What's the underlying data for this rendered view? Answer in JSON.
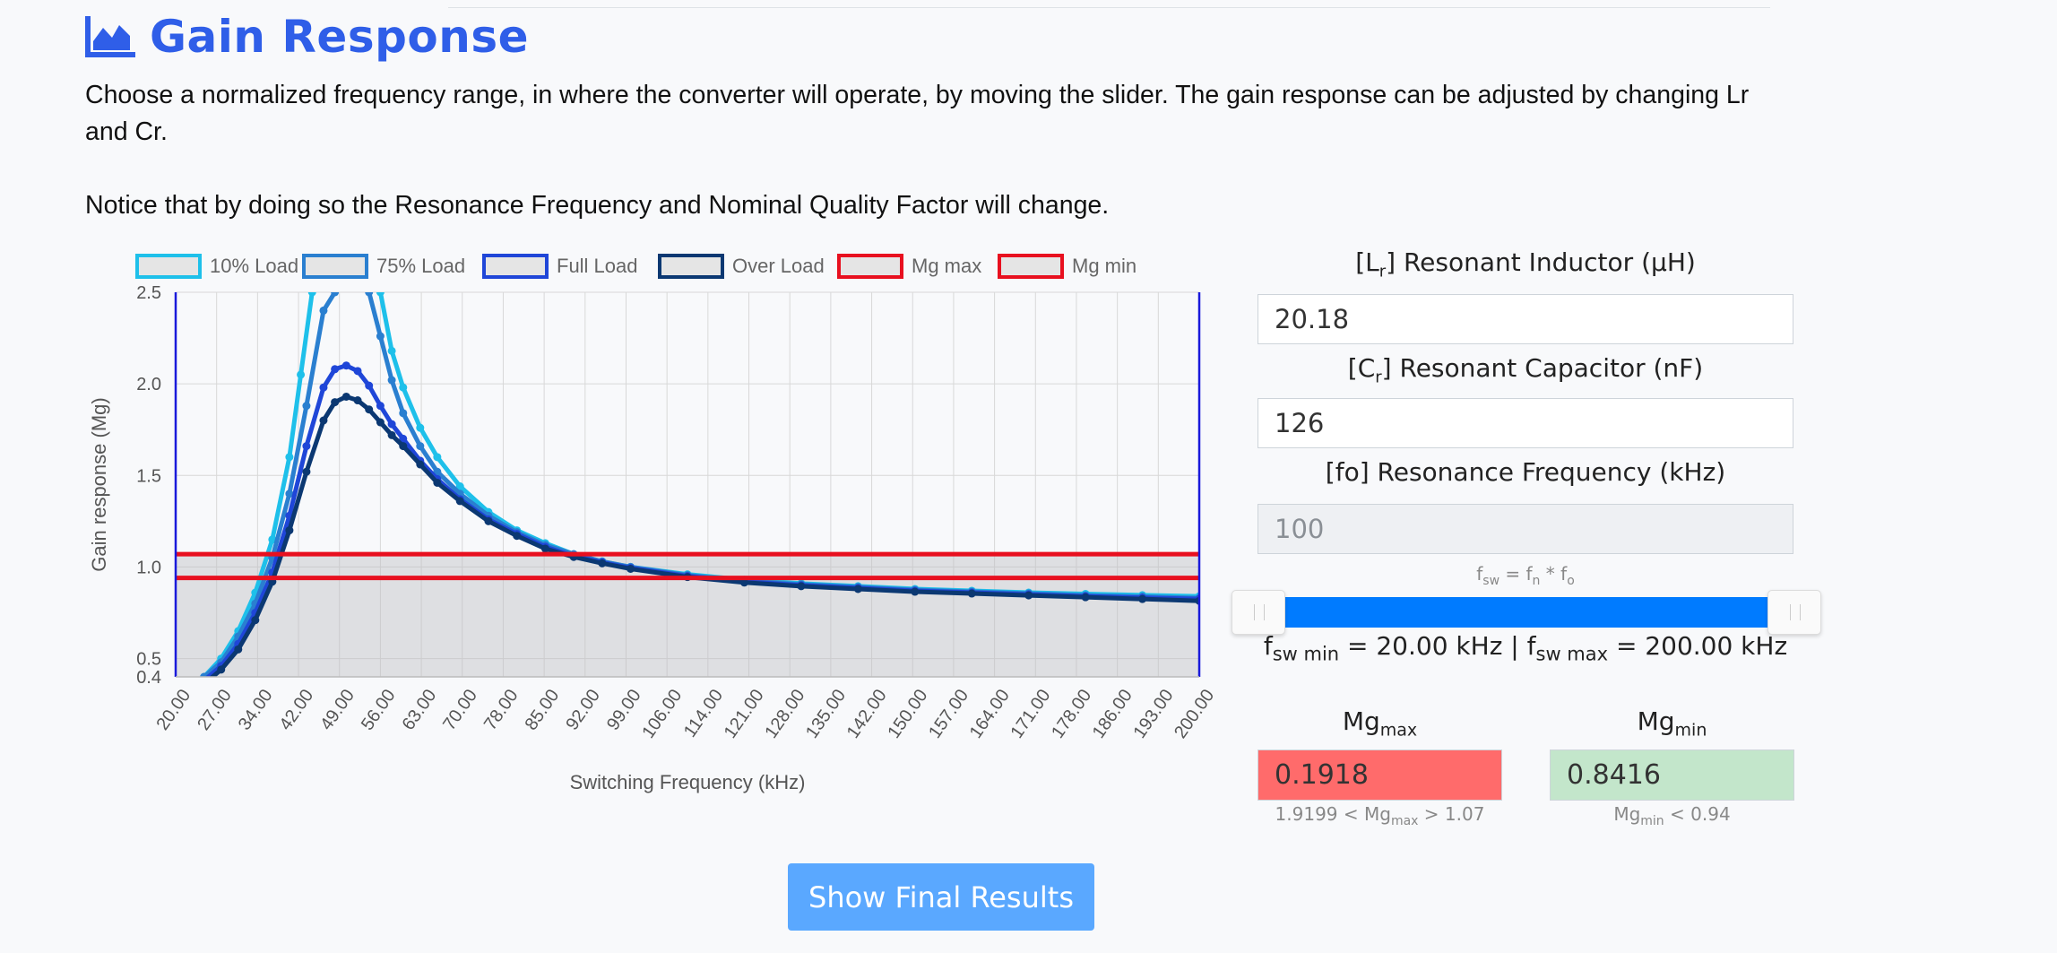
{
  "header": {
    "title": "Gain Response",
    "icon": "area-chart-icon"
  },
  "description": {
    "line1": "Choose a normalized frequency range, in where the converter will operate, by moving the slider. The gain response can be adjusted by changing Lr and Cr.",
    "line2": "Notice that by doing so the Resonance Frequency and Nominal Quality Factor will change."
  },
  "chart_data": {
    "type": "line",
    "xlabel": "Switching Frequency (kHz)",
    "ylabel": "Gain response (Mg)",
    "ylim": [
      0.4,
      2.5
    ],
    "yticks": [
      "0.4",
      "0.5",
      "1.0",
      "1.5",
      "2.0",
      "2.5"
    ],
    "x_ticks": [
      "20.00",
      "27.00",
      "34.00",
      "42.00",
      "49.00",
      "56.00",
      "63.00",
      "70.00",
      "78.00",
      "85.00",
      "92.00",
      "99.00",
      "106.00",
      "114.00",
      "121.00",
      "128.00",
      "135.00",
      "142.00",
      "150.00",
      "157.00",
      "164.00",
      "171.00",
      "178.00",
      "186.00",
      "193.00",
      "200.00"
    ],
    "grid": true,
    "legend_position": "top",
    "series": [
      {
        "name": "10% Load",
        "color": "#1ec0ea",
        "x": [
          25,
          28,
          31,
          34,
          37,
          40,
          42,
          44,
          46,
          48,
          50,
          52,
          54,
          56,
          58,
          60,
          63,
          66,
          70,
          75,
          80,
          85,
          90,
          95,
          100,
          110,
          120,
          130,
          140,
          150,
          160,
          170,
          180,
          190,
          200
        ],
        "y": [
          0.4,
          0.5,
          0.65,
          0.86,
          1.15,
          1.6,
          2.05,
          2.5,
          null,
          null,
          null,
          null,
          null,
          2.5,
          2.18,
          1.98,
          1.76,
          1.6,
          1.44,
          1.3,
          1.2,
          1.13,
          1.07,
          1.03,
          1.0,
          0.96,
          0.93,
          0.91,
          0.895,
          0.88,
          0.87,
          0.86,
          0.853,
          0.846,
          0.84
        ]
      },
      {
        "name": "75% Load",
        "color": "#2a7fd0",
        "x": [
          25,
          28,
          31,
          34,
          37,
          40,
          43,
          46,
          48,
          50,
          52,
          54,
          56,
          58,
          60,
          63,
          66,
          70,
          75,
          80,
          85,
          90,
          95,
          100,
          110,
          120,
          130,
          140,
          150,
          160,
          170,
          180,
          190,
          200
        ],
        "y": [
          0.4,
          0.48,
          0.62,
          0.8,
          1.05,
          1.4,
          1.88,
          2.4,
          2.5,
          null,
          null,
          2.5,
          2.26,
          2.02,
          1.84,
          1.66,
          1.52,
          1.4,
          1.28,
          1.19,
          1.12,
          1.07,
          1.03,
          1.0,
          0.955,
          0.925,
          0.905,
          0.89,
          0.875,
          0.865,
          0.855,
          0.845,
          0.838,
          0.83
        ]
      },
      {
        "name": "Full Load",
        "color": "#1f46d8",
        "x": [
          25,
          28,
          31,
          34,
          37,
          40,
          43,
          46,
          48,
          50,
          52,
          54,
          56,
          58,
          60,
          63,
          66,
          70,
          75,
          80,
          85,
          90,
          95,
          100,
          110,
          120,
          130,
          140,
          150,
          160,
          170,
          180,
          190,
          200
        ],
        "y": [
          0.38,
          0.46,
          0.58,
          0.75,
          0.97,
          1.28,
          1.66,
          1.98,
          2.08,
          2.1,
          2.07,
          1.99,
          1.88,
          1.78,
          1.7,
          1.58,
          1.48,
          1.37,
          1.26,
          1.18,
          1.11,
          1.06,
          1.025,
          0.995,
          0.95,
          0.92,
          0.9,
          0.885,
          0.87,
          0.86,
          0.85,
          0.84,
          0.832,
          0.825
        ]
      },
      {
        "name": "Over Load",
        "color": "#0b3872",
        "x": [
          25,
          28,
          31,
          34,
          37,
          40,
          43,
          46,
          48,
          50,
          52,
          54,
          56,
          58,
          60,
          63,
          66,
          70,
          75,
          80,
          85,
          90,
          95,
          100,
          110,
          120,
          130,
          140,
          150,
          160,
          170,
          180,
          190,
          200
        ],
        "y": [
          0.36,
          0.44,
          0.55,
          0.71,
          0.92,
          1.2,
          1.52,
          1.8,
          1.9,
          1.93,
          1.91,
          1.86,
          1.79,
          1.72,
          1.66,
          1.56,
          1.46,
          1.36,
          1.25,
          1.17,
          1.1,
          1.055,
          1.02,
          0.99,
          0.945,
          0.915,
          0.895,
          0.88,
          0.865,
          0.855,
          0.845,
          0.835,
          0.825,
          0.815
        ]
      },
      {
        "name": "Mg max",
        "color": "#e8101f",
        "value": 1.07
      },
      {
        "name": "Mg min",
        "color": "#e8101f",
        "value": 0.94
      }
    ]
  },
  "inputs": {
    "lr_label_pre": "[L",
    "lr_label_sub": "r",
    "lr_label_post": "] Resonant Inductor (μH)",
    "lr_value": "20.18",
    "cr_label_pre": "[C",
    "cr_label_sub": "r",
    "cr_label_post": "] Resonant Capacitor (nF)",
    "cr_value": "126",
    "fo_label": "[fo] Resonance Frequency (kHz)",
    "fo_value": "100"
  },
  "formula": {
    "f1": "f",
    "s1": "sw",
    "eq": " = f",
    "s2": "n",
    "mul": " * f",
    "s3": "o"
  },
  "slider": {
    "min_pre": "f",
    "min_sub": "sw min",
    "min_text": " = 20.00 kHz | f",
    "max_sub": "sw max",
    "max_text": " = 200.00 kHz",
    "range_fraction": [
      0.0,
      1.0
    ]
  },
  "mg": {
    "max_label": "Mg",
    "max_sub": "max",
    "max_value": "0.1918",
    "max_color": "#ff6b6b",
    "max_hint_pre": "1.9199 < Mg",
    "max_hint_sub": "max",
    "max_hint_post": " > 1.07",
    "min_label": "Mg",
    "min_sub": "min",
    "min_value": "0.8416",
    "min_color": "#c3e6cb",
    "min_hint_pre": "Mg",
    "min_hint_sub": "min",
    "min_hint_post": " < 0.94"
  },
  "button": {
    "label": "Show Final Results"
  }
}
